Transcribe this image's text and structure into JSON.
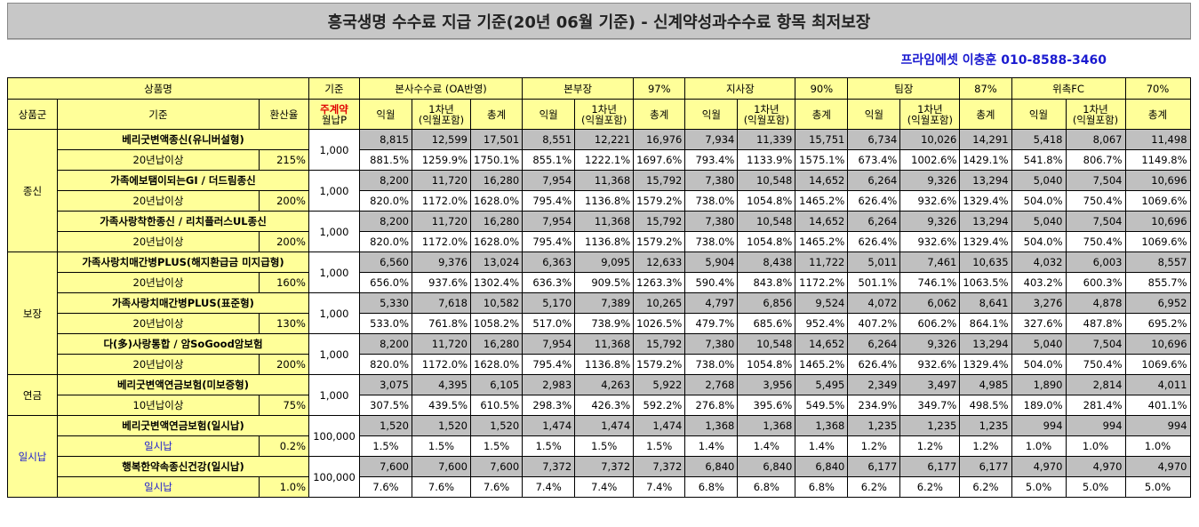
{
  "title": "흥국생명 수수료 지급 기준(20년 06월 기준) - 신계약성과수수료 항목 최저보장",
  "contact": "프라임에셋 이충훈 010-8588-3460",
  "header1": {
    "product_name": "상품명",
    "basis": "기준",
    "hq": "본사수수료 (OA반영)",
    "bonbujang": "본부장",
    "bonbujang_pct": "97%",
    "jisajang": "지사장",
    "jisajang_pct": "90%",
    "timjang": "팀장",
    "timjang_pct": "87%",
    "fc": "위촉FC",
    "fc_pct": "70%"
  },
  "header2": {
    "group": "상품군",
    "basis": "기준",
    "rate": "환산율",
    "premium_label": "주계약",
    "premium_sub": "월납P",
    "g1": [
      {
        "a": "익월",
        "b1": "1차년",
        "b2": "(익월포함)",
        "c": "총계"
      },
      {
        "a": "익월",
        "b1": "1차년",
        "b2": "(익월포함)",
        "c": "총계"
      },
      {
        "a": "익월",
        "b1": "1차년",
        "b2": "(익월포함)",
        "c": "총계"
      },
      {
        "a": "익월",
        "b1": "1차년",
        "b2": "(익월포함)",
        "c": "총계"
      },
      {
        "a": "익월",
        "b1": "1차년",
        "b2": "(익월포함)",
        "c": "총계"
      }
    ]
  },
  "groups": [
    {
      "name": "종신",
      "rows": [
        {
          "product": "베리굿변액종신(유니버설형)",
          "basis": "20년납이상",
          "rate": "215%",
          "premium": "1,000",
          "amounts": [
            "8,815",
            "12,599",
            "17,501",
            "8,551",
            "12,221",
            "16,976",
            "7,934",
            "11,339",
            "15,751",
            "6,734",
            "10,026",
            "14,291",
            "5,418",
            "8,067",
            "11,498"
          ],
          "pcts": [
            "881.5%",
            "1259.9%",
            "1750.1%",
            "855.1%",
            "1222.1%",
            "1697.6%",
            "793.4%",
            "1133.9%",
            "1575.1%",
            "673.4%",
            "1002.6%",
            "1429.1%",
            "541.8%",
            "806.7%",
            "1149.8%"
          ]
        },
        {
          "product": "가족에보탬이되는GI / 더드림종신",
          "basis": "20년납이상",
          "rate": "200%",
          "premium": "1,000",
          "amounts": [
            "8,200",
            "11,720",
            "16,280",
            "7,954",
            "11,368",
            "15,792",
            "7,380",
            "10,548",
            "14,652",
            "6,264",
            "9,326",
            "13,294",
            "5,040",
            "7,504",
            "10,696"
          ],
          "pcts": [
            "820.0%",
            "1172.0%",
            "1628.0%",
            "795.4%",
            "1136.8%",
            "1579.2%",
            "738.0%",
            "1054.8%",
            "1465.2%",
            "626.4%",
            "932.6%",
            "1329.4%",
            "504.0%",
            "750.4%",
            "1069.6%"
          ]
        },
        {
          "product": "가족사랑착한종신 / 리치플러스UL종신",
          "basis": "20년납이상",
          "rate": "200%",
          "premium": "1,000",
          "amounts": [
            "8,200",
            "11,720",
            "16,280",
            "7,954",
            "11,368",
            "15,792",
            "7,380",
            "10,548",
            "14,652",
            "6,264",
            "9,326",
            "13,294",
            "5,040",
            "7,504",
            "10,696"
          ],
          "pcts": [
            "820.0%",
            "1172.0%",
            "1628.0%",
            "795.4%",
            "1136.8%",
            "1579.2%",
            "738.0%",
            "1054.8%",
            "1465.2%",
            "626.4%",
            "932.6%",
            "1329.4%",
            "504.0%",
            "750.4%",
            "1069.6%"
          ]
        }
      ]
    },
    {
      "name": "보장",
      "rows": [
        {
          "product": "가족사랑치매간병PLUS(해지환급금 미지급형)",
          "basis": "20년납이상",
          "rate": "160%",
          "premium": "1,000",
          "amounts": [
            "6,560",
            "9,376",
            "13,024",
            "6,363",
            "9,095",
            "12,633",
            "5,904",
            "8,438",
            "11,722",
            "5,011",
            "7,461",
            "10,635",
            "4,032",
            "6,003",
            "8,557"
          ],
          "pcts": [
            "656.0%",
            "937.6%",
            "1302.4%",
            "636.3%",
            "909.5%",
            "1263.3%",
            "590.4%",
            "843.8%",
            "1172.2%",
            "501.1%",
            "746.1%",
            "1063.5%",
            "403.2%",
            "600.3%",
            "855.7%"
          ]
        },
        {
          "product": "가족사랑치매간병PLUS(표준형)",
          "basis": "20년납이상",
          "rate": "130%",
          "premium": "1,000",
          "amounts": [
            "5,330",
            "7,618",
            "10,582",
            "5,170",
            "7,389",
            "10,265",
            "4,797",
            "6,856",
            "9,524",
            "4,072",
            "6,062",
            "8,641",
            "3,276",
            "4,878",
            "6,952"
          ],
          "pcts": [
            "533.0%",
            "761.8%",
            "1058.2%",
            "517.0%",
            "738.9%",
            "1026.5%",
            "479.7%",
            "685.6%",
            "952.4%",
            "407.2%",
            "606.2%",
            "864.1%",
            "327.6%",
            "487.8%",
            "695.2%"
          ]
        },
        {
          "product": "다(多)사랑통합 / 암SoGood암보험",
          "basis": "20년납이상",
          "rate": "200%",
          "premium": "1,000",
          "amounts": [
            "8,200",
            "11,720",
            "16,280",
            "7,954",
            "11,368",
            "15,792",
            "7,380",
            "10,548",
            "14,652",
            "6,264",
            "9,326",
            "13,294",
            "5,040",
            "7,504",
            "10,696"
          ],
          "pcts": [
            "820.0%",
            "1172.0%",
            "1628.0%",
            "795.4%",
            "1136.8%",
            "1579.2%",
            "738.0%",
            "1054.8%",
            "1465.2%",
            "626.4%",
            "932.6%",
            "1329.4%",
            "504.0%",
            "750.4%",
            "1069.6%"
          ]
        }
      ]
    },
    {
      "name": "연금",
      "rows": [
        {
          "product": "베리굿변액연금보험(미보증형)",
          "basis": "10년납이상",
          "rate": "75%",
          "premium": "1,000",
          "amounts": [
            "3,075",
            "4,395",
            "6,105",
            "2,983",
            "4,263",
            "5,922",
            "2,768",
            "3,956",
            "5,495",
            "2,349",
            "3,497",
            "4,985",
            "1,890",
            "2,814",
            "4,011"
          ],
          "pcts": [
            "307.5%",
            "439.5%",
            "610.5%",
            "298.3%",
            "426.3%",
            "592.2%",
            "276.8%",
            "395.6%",
            "549.5%",
            "234.9%",
            "349.7%",
            "498.5%",
            "189.0%",
            "281.4%",
            "401.1%"
          ]
        }
      ]
    },
    {
      "name": "일시납",
      "rows": [
        {
          "product": "베리굿변액연금보험(일시납)",
          "basis": "일시납",
          "rate": "0.2%",
          "premium": "100,000",
          "amounts": [
            "1,520",
            "1,520",
            "1,520",
            "1,474",
            "1,474",
            "1,474",
            "1,368",
            "1,368",
            "1,368",
            "1,235",
            "1,235",
            "1,235",
            "994",
            "994",
            "994"
          ],
          "pcts": [
            "1.5%",
            "1.5%",
            "1.5%",
            "1.5%",
            "1.5%",
            "1.5%",
            "1.4%",
            "1.4%",
            "1.4%",
            "1.2%",
            "1.2%",
            "1.2%",
            "1.0%",
            "1.0%",
            "1.0%"
          ]
        },
        {
          "product": "행복한약속종신건강(일시납)",
          "basis": "일시납",
          "rate": "1.0%",
          "premium": "100,000",
          "amounts": [
            "7,600",
            "7,600",
            "7,600",
            "7,372",
            "7,372",
            "7,372",
            "6,840",
            "6,840",
            "6,840",
            "6,177",
            "6,177",
            "6,177",
            "4,970",
            "4,970",
            "4,970"
          ],
          "pcts": [
            "7.6%",
            "7.6%",
            "7.6%",
            "7.4%",
            "7.4%",
            "7.4%",
            "6.8%",
            "6.8%",
            "6.8%",
            "6.2%",
            "6.2%",
            "6.2%",
            "5.0%",
            "5.0%",
            "5.0%"
          ]
        }
      ]
    }
  ]
}
